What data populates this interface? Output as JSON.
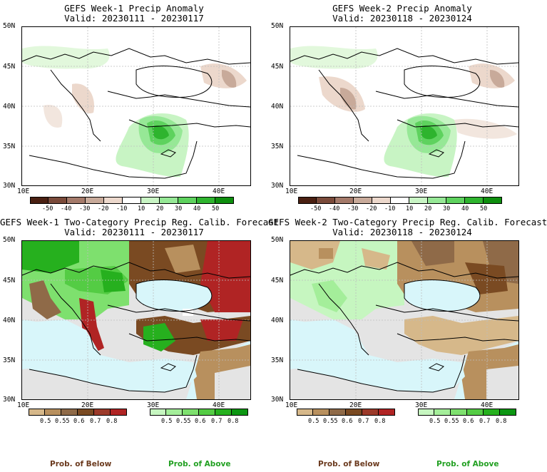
{
  "panels": [
    {
      "title": "GEFS Week-1 Precip Anomaly",
      "valid": "Valid: 20230111 - 20230117"
    },
    {
      "title": "GEFS Week-2 Precip Anomaly",
      "valid": "Valid: 20230118 - 20230124"
    },
    {
      "title": "GEFS Week-1 Two-Category Precip Reg. Calib. Forecast",
      "valid": "Valid: 20230111 - 20230117"
    },
    {
      "title": "GEFS Week-2 Two-Category Precip Reg. Calib. Forecast",
      "valid": "Valid: 20230118 - 20230124"
    }
  ],
  "latitude_labels": [
    "50N",
    "45N",
    "40N",
    "35N",
    "30N"
  ],
  "longitude_labels": [
    "10E",
    "20E",
    "30E",
    "40E"
  ],
  "anomaly_legend": {
    "ticks": [
      "-50",
      "-40",
      "-30",
      "-20",
      "-10",
      "10",
      "20",
      "30",
      "40",
      "50"
    ],
    "colors": [
      "#4a2012",
      "#7a4a3a",
      "#a47a6a",
      "#c8aa9a",
      "#ecd8cc",
      "#ffffff",
      "#c8f4c4",
      "#96e896",
      "#5ed25e",
      "#2eb42e",
      "#0e8e0e"
    ]
  },
  "below_legend": {
    "ticks": [
      "0.5",
      "0.55",
      "0.6",
      "0.7",
      "0.8"
    ],
    "colors": [
      "#d6b88a",
      "#b8905e",
      "#8f6a48",
      "#7a4a22",
      "#9c3a2a",
      "#b02424"
    ]
  },
  "above_legend": {
    "ticks": [
      "0.5",
      "0.55",
      "0.6",
      "0.7",
      "0.8"
    ],
    "colors": [
      "#c6f6c0",
      "#a4ee9a",
      "#7ee06e",
      "#54cc44",
      "#26b01e",
      "#0c9612"
    ]
  },
  "bottom_labels": {
    "below": "Prob. of Below",
    "above": "Prob. of Above"
  },
  "colors": {
    "below_label": "#6b3a1e",
    "above_label": "#22a022",
    "sea": "#d8f6fa",
    "land_gray": "#e4e4e4"
  }
}
